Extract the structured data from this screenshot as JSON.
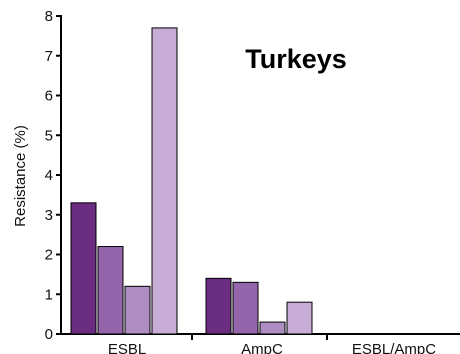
{
  "chart_data": {
    "type": "bar",
    "title": "Turkeys",
    "xlabel": "",
    "ylabel": "Resistance (%)",
    "ylim": [
      0,
      8
    ],
    "yticks": [
      "0",
      "1",
      "2",
      "3",
      "4",
      "5",
      "6",
      "7",
      "8"
    ],
    "categories": [
      "ESBL",
      "AmpC",
      "ESBL/AmpC"
    ],
    "series": [
      {
        "values": [
          3.3,
          1.4,
          0
        ],
        "color": "#6b2d82"
      },
      {
        "values": [
          2.2,
          1.3,
          0
        ],
        "color": "#9465aa"
      },
      {
        "values": [
          1.2,
          0.3,
          0
        ],
        "color": "#ad8dc2"
      },
      {
        "values": [
          7.7,
          0.8,
          0
        ],
        "color": "#c6acd6"
      }
    ],
    "grid": false,
    "legend": "none"
  }
}
